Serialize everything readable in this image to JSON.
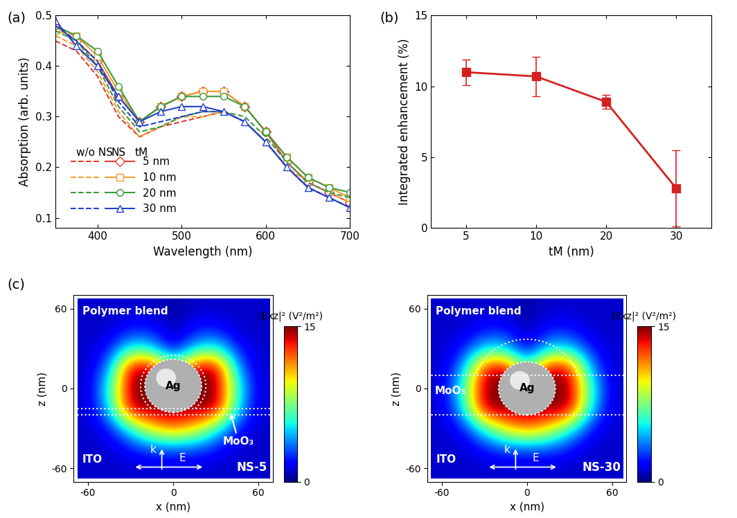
{
  "panel_labels": [
    "(a)",
    "(b)",
    "(c)"
  ],
  "chart_data": [
    {
      "type": "line",
      "x_label": "Wavelength (nm)",
      "y_label": "Absorption (arb. units)",
      "xlim": [
        350,
        700
      ],
      "xticks": [
        400,
        500,
        600,
        700
      ],
      "ylim": [
        0.08,
        0.5
      ],
      "yticks": [
        0.1,
        0.2,
        0.3,
        0.4,
        0.5
      ],
      "legend": "lower left",
      "legend_headers": [
        "w/o NS",
        "NS",
        "tM"
      ],
      "x": [
        350,
        375,
        400,
        425,
        450,
        475,
        500,
        525,
        550,
        575,
        600,
        625,
        650,
        675,
        700
      ],
      "series": [
        {
          "name": "5 nm",
          "color": "#e03c31",
          "marker": "D",
          "without_ns": [
            0.45,
            0.43,
            0.38,
            0.3,
            0.26,
            0.28,
            0.29,
            0.3,
            0.31,
            0.29,
            0.25,
            0.2,
            0.16,
            0.14,
            0.12
          ],
          "with_ns": [
            0.48,
            0.45,
            0.41,
            0.34,
            0.29,
            0.32,
            0.34,
            0.35,
            0.35,
            0.32,
            0.27,
            0.21,
            0.17,
            0.15,
            0.13
          ]
        },
        {
          "name": "10 nm",
          "color": "#f0a030",
          "marker": "s",
          "without_ns": [
            0.46,
            0.44,
            0.39,
            0.31,
            0.26,
            0.28,
            0.3,
            0.3,
            0.31,
            0.29,
            0.25,
            0.2,
            0.17,
            0.15,
            0.13
          ],
          "with_ns": [
            0.47,
            0.46,
            0.42,
            0.35,
            0.29,
            0.32,
            0.34,
            0.35,
            0.35,
            0.32,
            0.27,
            0.22,
            0.18,
            0.16,
            0.14
          ]
        },
        {
          "name": "20 nm",
          "color": "#3a9a3a",
          "marker": "o",
          "without_ns": [
            0.47,
            0.45,
            0.4,
            0.32,
            0.27,
            0.28,
            0.3,
            0.31,
            0.31,
            0.3,
            0.26,
            0.21,
            0.17,
            0.15,
            0.14
          ],
          "with_ns": [
            0.48,
            0.46,
            0.43,
            0.36,
            0.29,
            0.32,
            0.34,
            0.34,
            0.34,
            0.32,
            0.27,
            0.22,
            0.18,
            0.16,
            0.15
          ]
        },
        {
          "name": "30 nm",
          "color": "#2040d0",
          "marker": "^",
          "without_ns": [
            0.48,
            0.45,
            0.41,
            0.33,
            0.28,
            0.29,
            0.3,
            0.31,
            0.31,
            0.29,
            0.25,
            0.2,
            0.16,
            0.14,
            0.12
          ],
          "with_ns": [
            0.49,
            0.44,
            0.4,
            0.34,
            0.29,
            0.31,
            0.32,
            0.32,
            0.31,
            0.29,
            0.25,
            0.2,
            0.16,
            0.14,
            0.12
          ]
        }
      ]
    },
    {
      "type": "line",
      "x_label": "tM (nm)",
      "y_label": "Integrated enhancement (%)",
      "categories": [
        "5",
        "10",
        "20",
        "30"
      ],
      "values": [
        11.0,
        10.7,
        8.9,
        2.8
      ],
      "errors": [
        0.9,
        1.4,
        0.5,
        2.7
      ],
      "color": "#d42020",
      "marker": "s",
      "ylim": [
        0,
        15
      ],
      "yticks": [
        0,
        5,
        10,
        15
      ]
    },
    {
      "type": "heatmap",
      "name": "NS-5",
      "x_label": "x (nm)",
      "y_label": "z (nm)",
      "xlim": [
        -70,
        70
      ],
      "xticks": [
        -60,
        0,
        60
      ],
      "ylim": [
        -70,
        70
      ],
      "yticks": [
        -60,
        0,
        60
      ],
      "colorbar_label": "|Exz|² (V²/m²)",
      "colorbar_range": [
        0,
        15
      ],
      "colorbar_ticks": [
        0,
        15
      ],
      "labels": {
        "top": "Polymer blend",
        "bottom": "ITO",
        "layer": "MoO₃",
        "particle": "Ag",
        "k": "k",
        "E": "E"
      },
      "ag_center_z": 2,
      "ag_radius": 20,
      "shell_radius": 23,
      "moo3_z": [
        -20,
        -15
      ],
      "x": [
        -60,
        -45,
        -30,
        -15,
        0,
        15,
        30,
        45,
        60
      ],
      "z": [
        60,
        45,
        30,
        15,
        0,
        -15,
        -30,
        -45,
        -60
      ],
      "cells": [
        [
          1,
          1,
          1,
          1,
          0.5,
          1,
          1,
          1,
          1
        ],
        [
          1,
          1,
          2,
          2,
          0.5,
          2,
          2,
          1,
          1
        ],
        [
          1,
          2,
          6,
          5,
          1,
          5,
          6,
          2,
          1
        ],
        [
          1,
          4,
          15,
          15,
          8,
          15,
          15,
          4,
          1
        ],
        [
          1,
          6,
          15,
          15,
          15,
          15,
          15,
          6,
          1
        ],
        [
          1,
          5,
          15,
          15,
          15,
          15,
          15,
          5,
          1
        ],
        [
          1,
          2,
          6,
          10,
          12,
          10,
          6,
          2,
          1
        ],
        [
          1,
          1,
          2,
          3,
          3,
          3,
          2,
          1,
          1
        ],
        [
          1,
          1,
          1,
          1,
          1,
          1,
          1,
          1,
          1
        ]
      ]
    },
    {
      "type": "heatmap",
      "name": "NS-30",
      "x_label": "x (nm)",
      "y_label": "z (nm)",
      "xlim": [
        -70,
        70
      ],
      "xticks": [
        -60,
        0,
        60
      ],
      "ylim": [
        -70,
        70
      ],
      "yticks": [
        -60,
        0,
        60
      ],
      "colorbar_label": "|Exz|² (V²/m²)",
      "colorbar_range": [
        0,
        15
      ],
      "colorbar_ticks": [
        0,
        15
      ],
      "labels": {
        "top": "Polymer blend",
        "bottom": "ITO",
        "layer": "MoO₃",
        "particle": "Ag",
        "k": "k",
        "E": "E"
      },
      "ag_center_z": 0,
      "ag_radius": 20,
      "shell_radius": 37,
      "moo3_z": [
        -20,
        10
      ],
      "x": [
        -60,
        -45,
        -30,
        -15,
        0,
        15,
        30,
        45,
        60
      ],
      "z": [
        60,
        45,
        30,
        15,
        0,
        -15,
        -30,
        -45,
        -60
      ],
      "cells": [
        [
          1,
          1,
          1,
          1,
          0.5,
          1,
          1,
          1,
          1
        ],
        [
          1,
          1,
          2,
          2,
          0.5,
          2,
          2,
          1,
          1
        ],
        [
          1,
          2,
          5,
          5,
          1,
          5,
          5,
          2,
          1
        ],
        [
          1,
          4,
          14,
          15,
          6,
          15,
          14,
          4,
          1
        ],
        [
          1,
          6,
          15,
          15,
          15,
          15,
          15,
          6,
          1
        ],
        [
          1,
          5,
          15,
          15,
          15,
          15,
          15,
          5,
          1
        ],
        [
          1,
          2,
          6,
          10,
          12,
          10,
          6,
          2,
          1
        ],
        [
          1,
          1,
          2,
          3,
          3,
          3,
          2,
          1,
          1
        ],
        [
          1,
          1,
          1,
          1,
          1,
          1,
          1,
          1,
          1
        ]
      ]
    }
  ]
}
